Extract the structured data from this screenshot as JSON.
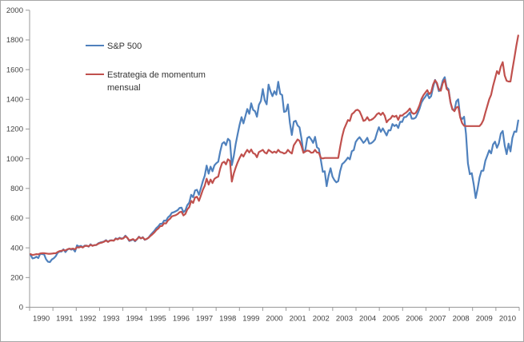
{
  "chart_data": {
    "type": "line",
    "title": "",
    "xlabel": "",
    "ylabel": "",
    "ylim": [
      0,
      2000
    ],
    "y_ticks": [
      0,
      200,
      400,
      600,
      800,
      1000,
      1200,
      1400,
      1600,
      1800,
      2000
    ],
    "x_years": [
      "1990",
      "1991",
      "1992",
      "1993",
      "1994",
      "1995",
      "1996",
      "1997",
      "1998",
      "1999",
      "2000",
      "2001",
      "2002",
      "2003",
      "2004",
      "2005",
      "2006",
      "2007",
      "2008",
      "2009",
      "2010"
    ],
    "x_unit": "month",
    "grid": false,
    "legend_position": "inside-upper-left",
    "series": [
      {
        "name": "S&P 500",
        "color": "#4F81BD",
        "values": [
          353,
          329,
          332,
          340,
          331,
          361,
          358,
          356,
          323,
          306,
          304,
          322,
          330,
          344,
          367,
          375,
          375,
          390,
          371,
          388,
          395,
          388,
          392,
          375,
          417,
          409,
          413,
          404,
          415,
          415,
          408,
          424,
          414,
          418,
          419,
          431,
          436,
          439,
          443,
          452,
          440,
          450,
          451,
          448,
          464,
          459,
          468,
          462,
          466,
          482,
          467,
          446,
          451,
          457,
          444,
          458,
          475,
          463,
          472,
          454,
          459,
          470,
          487,
          501,
          515,
          533,
          545,
          562,
          562,
          584,
          582,
          605,
          616,
          636,
          640,
          646,
          654,
          669,
          671,
          640,
          652,
          687,
          705,
          757,
          741,
          786,
          791,
          757,
          801,
          848,
          885,
          954,
          899,
          947,
          915,
          955,
          970,
          980,
          1049,
          1102,
          1112,
          1091,
          1134,
          1121,
          957,
          1017,
          1099,
          1164,
          1229,
          1280,
          1238,
          1286,
          1335,
          1302,
          1373,
          1329,
          1320,
          1283,
          1363,
          1389,
          1469,
          1394,
          1366,
          1499,
          1452,
          1421,
          1455,
          1431,
          1518,
          1437,
          1429,
          1315,
          1320,
          1366,
          1240,
          1160,
          1249,
          1256,
          1224,
          1211,
          1134,
          1041,
          1060,
          1139,
          1148,
          1130,
          1107,
          1147,
          1077,
          1067,
          990,
          912,
          916,
          815,
          886,
          936,
          880,
          856,
          841,
          849,
          917,
          964,
          975,
          990,
          1008,
          996,
          1051,
          1058,
          1112,
          1131,
          1145,
          1126,
          1107,
          1121,
          1141,
          1102,
          1104,
          1115,
          1130,
          1174,
          1212,
          1181,
          1204,
          1181,
          1157,
          1192,
          1191,
          1234,
          1220,
          1229,
          1207,
          1249,
          1248,
          1280,
          1281,
          1295,
          1311,
          1270,
          1270,
          1277,
          1304,
          1336,
          1378,
          1401,
          1418,
          1438,
          1407,
          1421,
          1482,
          1531,
          1503,
          1455,
          1474,
          1527,
          1549,
          1481,
          1468,
          1379,
          1331,
          1323,
          1386,
          1400,
          1280,
          1267,
          1283,
          1166,
          969,
          896,
          903,
          826,
          735,
          798,
          873,
          919,
          919,
          987,
          1021,
          1057,
          1036,
          1096,
          1115,
          1074,
          1104,
          1169,
          1187,
          1089,
          1031,
          1102,
          1049,
          1141,
          1183,
          1181,
          1258
        ]
      },
      {
        "name": "Estrategia de momentum mensual",
        "color": "#C0504D",
        "values": [
          358,
          352,
          354,
          358,
          356,
          362,
          364,
          364,
          362,
          360,
          360,
          361,
          363,
          364,
          372,
          378,
          380,
          385,
          382,
          390,
          394,
          392,
          395,
          390,
          404,
          402,
          408,
          402,
          412,
          414,
          410,
          420,
          414,
          418,
          420,
          428,
          433,
          436,
          441,
          449,
          440,
          448,
          450,
          448,
          461,
          457,
          465,
          460,
          464,
          477,
          468,
          450,
          454,
          459,
          448,
          459,
          473,
          464,
          470,
          456,
          460,
          468,
          481,
          492,
          504,
          520,
          530,
          546,
          547,
          566,
          564,
          585,
          595,
          612,
          616,
          620,
          628,
          640,
          643,
          618,
          628,
          658,
          674,
          716,
          702,
          740,
          744,
          716,
          752,
          790,
          818,
          866,
          826,
          860,
          836,
          864,
          874,
          880,
          935,
          972,
          980,
          962,
          996,
          986,
          846,
          900,
          940,
          975,
          1005,
          1030,
          1015,
          1040,
          1060,
          1042,
          1062,
          1038,
          1032,
          1010,
          1045,
          1052,
          1060,
          1042,
          1035,
          1060,
          1050,
          1040,
          1048,
          1040,
          1060,
          1045,
          1042,
          1035,
          1040,
          1060,
          1045,
          1035,
          1090,
          1110,
          1130,
          1120,
          1085,
          1040,
          1048,
          1055,
          1052,
          1040,
          1042,
          1060,
          1042,
          1040,
          1005,
          1002,
          1005,
          1005,
          1005,
          1005,
          1005,
          1005,
          1005,
          1005,
          1080,
          1150,
          1200,
          1230,
          1260,
          1255,
          1300,
          1310,
          1325,
          1330,
          1320,
          1290,
          1255,
          1260,
          1280,
          1258,
          1262,
          1270,
          1282,
          1300,
          1308,
          1295,
          1310,
          1290,
          1245,
          1262,
          1270,
          1290,
          1282,
          1290,
          1262,
          1292,
          1290,
          1302,
          1310,
          1322,
          1338,
          1310,
          1302,
          1308,
          1330,
          1360,
          1402,
          1428,
          1445,
          1462,
          1435,
          1448,
          1500,
          1528,
          1510,
          1465,
          1458,
          1510,
          1532,
          1470,
          1458,
          1380,
          1335,
          1320,
          1345,
          1350,
          1280,
          1240,
          1222,
          1220,
          1220,
          1220,
          1220,
          1220,
          1220,
          1220,
          1220,
          1235,
          1260,
          1310,
          1355,
          1400,
          1430,
          1490,
          1540,
          1590,
          1570,
          1620,
          1650,
          1560,
          1525,
          1520,
          1520,
          1600,
          1680,
          1760,
          1830
        ]
      }
    ]
  }
}
